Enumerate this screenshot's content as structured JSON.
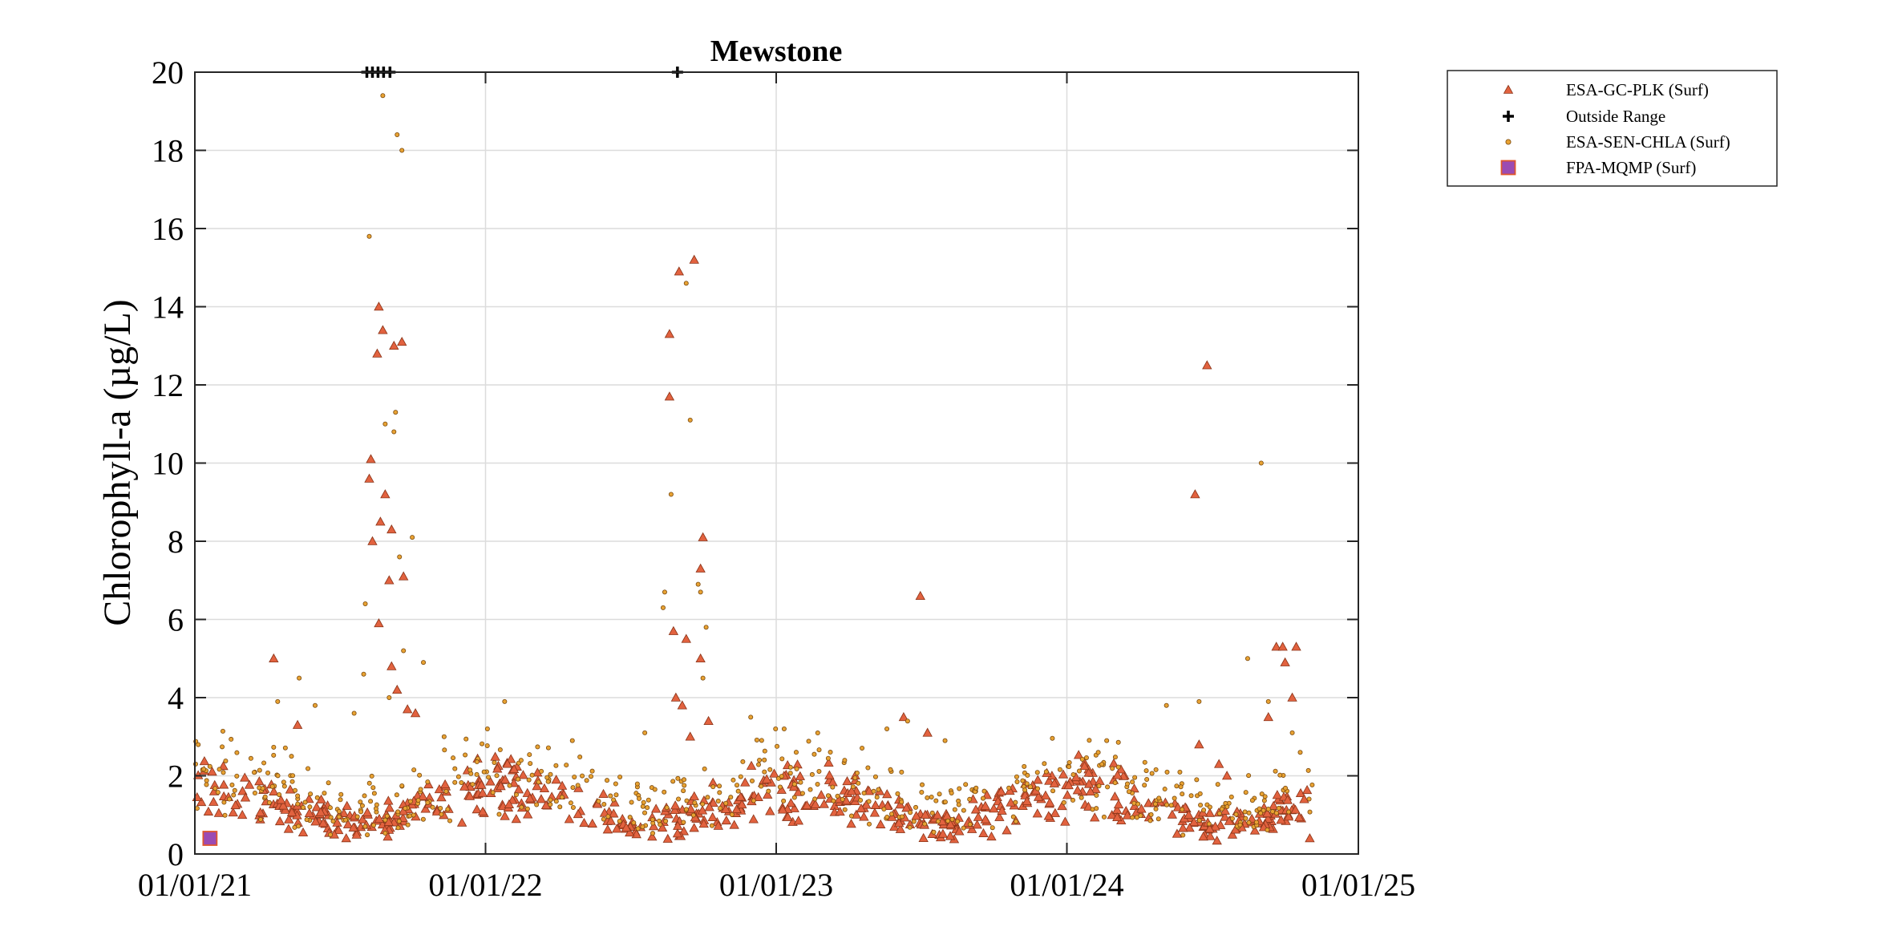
{
  "chart_data": {
    "type": "scatter",
    "title": "Mewstone",
    "xlabel": "",
    "ylabel": "Chlorophyll-a (µg/L)",
    "x_axis": {
      "type": "date",
      "range": [
        "2021-01-01",
        "2025-01-01"
      ],
      "ticks": [
        "2021-01-01",
        "2022-01-01",
        "2023-01-01",
        "2024-01-01",
        "2025-01-01"
      ],
      "tick_labels": [
        "01/01/21",
        "01/01/22",
        "01/01/23",
        "01/01/24",
        "01/01/25"
      ]
    },
    "y_axis": {
      "range": [
        0,
        20
      ],
      "ticks": [
        0,
        2,
        4,
        6,
        8,
        10,
        12,
        14,
        16,
        18,
        20
      ],
      "tick_labels": [
        "0",
        "2",
        "4",
        "6",
        "8",
        "10",
        "12",
        "14",
        "16",
        "18",
        "20"
      ]
    },
    "grid": true,
    "legend_position": "outside-top-right",
    "series": [
      {
        "name": "ESA-GC-PLK (Surf)",
        "marker": "triangle",
        "color": "#e2623f",
        "edge": "#8a3418",
        "points": [
          [
            "2021-04-10",
            5.0
          ],
          [
            "2021-05-10",
            3.3
          ],
          [
            "2021-08-10",
            10.1
          ],
          [
            "2021-08-08",
            9.6
          ],
          [
            "2021-08-12",
            8.0
          ],
          [
            "2021-08-20",
            14.0
          ],
          [
            "2021-08-18",
            12.8
          ],
          [
            "2021-08-25",
            13.4
          ],
          [
            "2021-08-22",
            8.5
          ],
          [
            "2021-08-28",
            9.2
          ],
          [
            "2021-09-05",
            8.3
          ],
          [
            "2021-09-08",
            13.0
          ],
          [
            "2021-09-18",
            13.1
          ],
          [
            "2021-09-20",
            7.1
          ],
          [
            "2021-09-02",
            7.0
          ],
          [
            "2021-08-20",
            5.9
          ],
          [
            "2021-09-05",
            4.8
          ],
          [
            "2021-09-25",
            3.7
          ],
          [
            "2021-10-05",
            3.6
          ],
          [
            "2021-09-12",
            4.2
          ],
          [
            "2022-08-20",
            13.3
          ],
          [
            "2022-08-20",
            11.7
          ],
          [
            "2022-09-01",
            14.9
          ],
          [
            "2022-09-20",
            15.2
          ],
          [
            "2022-10-01",
            8.1
          ],
          [
            "2022-09-28",
            7.3
          ],
          [
            "2022-08-25",
            5.7
          ],
          [
            "2022-09-10",
            5.5
          ],
          [
            "2022-09-28",
            5.0
          ],
          [
            "2022-08-28",
            4.0
          ],
          [
            "2022-09-05",
            3.8
          ],
          [
            "2022-10-08",
            3.4
          ],
          [
            "2022-09-15",
            3.0
          ],
          [
            "2023-07-01",
            6.6
          ],
          [
            "2023-06-10",
            3.5
          ],
          [
            "2023-07-10",
            3.1
          ],
          [
            "2024-06-10",
            9.2
          ],
          [
            "2024-06-25",
            12.5
          ],
          [
            "2024-09-20",
            5.3
          ],
          [
            "2024-09-28",
            5.3
          ],
          [
            "2024-10-15",
            5.3
          ],
          [
            "2024-10-01",
            4.9
          ],
          [
            "2024-10-10",
            4.0
          ],
          [
            "2024-09-10",
            3.5
          ],
          [
            "2024-06-15",
            2.8
          ],
          [
            "2024-07-10",
            2.3
          ],
          [
            "2024-07-20",
            2.0
          ],
          [
            "2024-10-25",
            1.4
          ],
          [
            "2024-11-01",
            0.4
          ]
        ]
      },
      {
        "name": "Outside Range",
        "marker": "plus",
        "color": "#000000",
        "points": [
          [
            "2021-08-05",
            20
          ],
          [
            "2021-08-12",
            20
          ],
          [
            "2021-08-19",
            20
          ],
          [
            "2021-08-26",
            20
          ],
          [
            "2021-09-03",
            20
          ],
          [
            "2022-08-30",
            20
          ]
        ]
      },
      {
        "name": "ESA-SEN-CHLA (Surf)",
        "marker": "circle",
        "color": "#e8a232",
        "edge": "#7a4a10",
        "points": [
          [
            "2021-01-02",
            2.3
          ],
          [
            "2021-04-15",
            3.9
          ],
          [
            "2021-05-12",
            4.5
          ],
          [
            "2021-06-01",
            3.8
          ],
          [
            "2021-07-20",
            3.6
          ],
          [
            "2021-08-01",
            4.6
          ],
          [
            "2021-08-03",
            6.4
          ],
          [
            "2021-08-08",
            15.8
          ],
          [
            "2021-08-25",
            19.4
          ],
          [
            "2021-09-12",
            18.4
          ],
          [
            "2021-09-18",
            18.0
          ],
          [
            "2021-08-28",
            11.0
          ],
          [
            "2021-09-10",
            11.3
          ],
          [
            "2021-09-08",
            10.8
          ],
          [
            "2021-10-01",
            8.1
          ],
          [
            "2021-09-15",
            7.6
          ],
          [
            "2021-09-20",
            5.2
          ],
          [
            "2021-10-15",
            4.9
          ],
          [
            "2021-09-02",
            4.0
          ],
          [
            "2021-11-10",
            3.0
          ],
          [
            "2022-01-25",
            3.9
          ],
          [
            "2022-04-20",
            2.9
          ],
          [
            "2022-07-20",
            3.1
          ],
          [
            "2022-08-12",
            6.3
          ],
          [
            "2022-08-14",
            6.7
          ],
          [
            "2022-08-22",
            9.2
          ],
          [
            "2022-09-10",
            14.6
          ],
          [
            "2022-09-15",
            11.1
          ],
          [
            "2022-09-25",
            6.9
          ],
          [
            "2022-09-28",
            6.7
          ],
          [
            "2022-10-05",
            5.8
          ],
          [
            "2022-10-01",
            4.5
          ],
          [
            "2022-11-30",
            3.5
          ],
          [
            "2023-05-20",
            3.2
          ],
          [
            "2023-06-15",
            3.4
          ],
          [
            "2023-08-01",
            2.9
          ],
          [
            "2024-02-20",
            2.9
          ],
          [
            "2024-05-05",
            3.8
          ],
          [
            "2024-06-15",
            3.9
          ],
          [
            "2024-08-15",
            5.0
          ],
          [
            "2024-09-01",
            10.0
          ],
          [
            "2024-09-10",
            3.9
          ],
          [
            "2024-10-10",
            3.1
          ],
          [
            "2024-10-20",
            2.6
          ]
        ]
      },
      {
        "name": "FPA-MQMP (Surf)",
        "marker": "square",
        "color": "#9b4bb3",
        "edge": "#e0562c",
        "points": [
          [
            "2021-01-20",
            0.4
          ]
        ]
      }
    ]
  }
}
